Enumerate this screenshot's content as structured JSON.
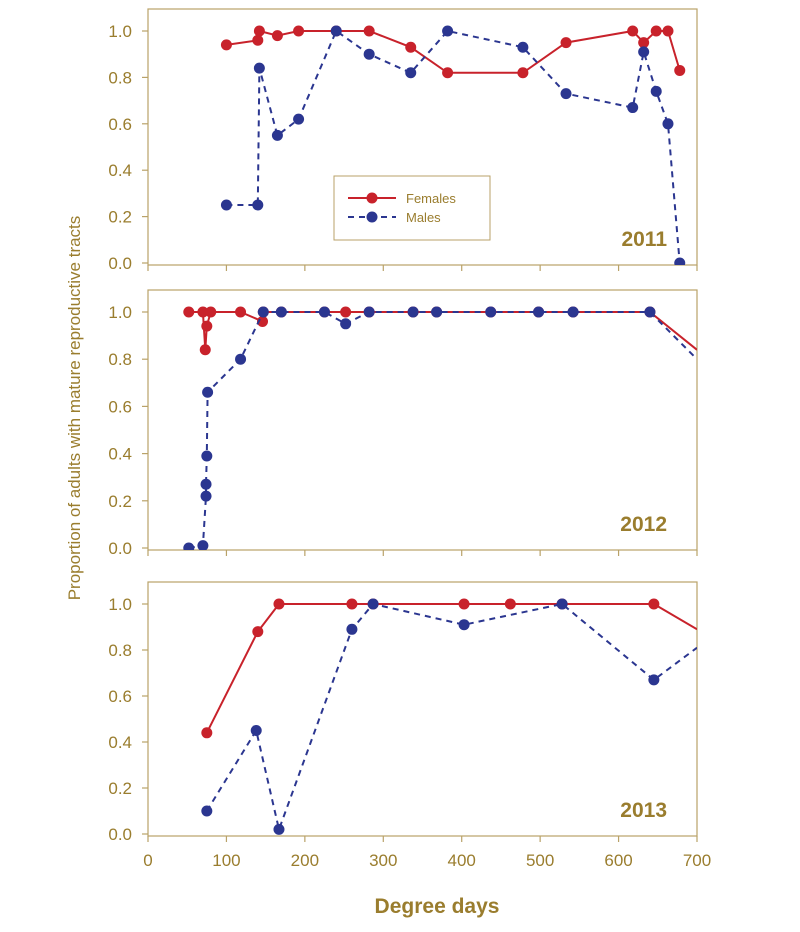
{
  "theme": {
    "frame_color": "#b9a268",
    "text_color": "#9a7d2e",
    "female_color": "#c8222b",
    "male_color": "#2b3690"
  },
  "shared": {
    "xlabel": "Degree days",
    "ylabel": "Proportion of adults with mature reproductive tracts",
    "x_ticks": [
      0,
      100,
      200,
      300,
      400,
      500,
      600,
      700
    ],
    "xlim": [
      0,
      700
    ]
  },
  "legend": [
    {
      "name": "Females",
      "style": "solid",
      "color": "#c8222b"
    },
    {
      "name": "Males",
      "style": "dashed",
      "color": "#2b3690"
    }
  ],
  "chart_data": [
    {
      "type": "line",
      "title": "2011",
      "ylim": [
        0,
        1.05
      ],
      "y_ticks": [
        "0.0",
        "0.2",
        "0.4",
        "0.6",
        "0.8",
        "1.0"
      ],
      "legend_position": "center",
      "series": [
        {
          "name": "Females",
          "style": "solid",
          "points": [
            [
              100,
              0.94
            ],
            [
              140,
              0.96
            ],
            [
              142,
              1.0
            ],
            [
              165,
              0.98
            ],
            [
              192,
              1.0
            ],
            [
              240,
              1.0
            ],
            [
              282,
              1.0
            ],
            [
              335,
              0.93
            ],
            [
              382,
              0.82
            ],
            [
              478,
              0.82
            ],
            [
              533,
              0.95
            ],
            [
              618,
              1.0
            ],
            [
              632,
              0.95
            ],
            [
              648,
              1.0
            ],
            [
              663,
              1.0
            ],
            [
              678,
              0.83
            ]
          ]
        },
        {
          "name": "Males",
          "style": "dashed",
          "points": [
            [
              100,
              0.25
            ],
            [
              140,
              0.25
            ],
            [
              142,
              0.84
            ],
            [
              165,
              0.55
            ],
            [
              192,
              0.62
            ],
            [
              240,
              1.0
            ],
            [
              282,
              0.9
            ],
            [
              335,
              0.82
            ],
            [
              382,
              1.0
            ],
            [
              478,
              0.93
            ],
            [
              533,
              0.73
            ],
            [
              618,
              0.67
            ],
            [
              632,
              0.91
            ],
            [
              648,
              0.74
            ],
            [
              663,
              0.6
            ],
            [
              678,
              0.0
            ]
          ]
        }
      ]
    },
    {
      "type": "line",
      "title": "2012",
      "ylim": [
        0,
        1.05
      ],
      "y_ticks": [
        "0.0",
        "0.2",
        "0.4",
        "0.6",
        "0.8",
        "1.0"
      ],
      "series": [
        {
          "name": "Females",
          "style": "solid",
          "points": [
            [
              52,
              1.0
            ],
            [
              70,
              1.0
            ],
            [
              73,
              0.84
            ],
            [
              75,
              0.94
            ],
            [
              80,
              1.0
            ],
            [
              118,
              1.0
            ],
            [
              146,
              0.96
            ],
            [
              147,
              1.0
            ],
            [
              170,
              1.0
            ],
            [
              225,
              1.0
            ],
            [
              252,
              1.0
            ],
            [
              282,
              1.0
            ],
            [
              338,
              1.0
            ],
            [
              368,
              1.0
            ],
            [
              437,
              1.0
            ],
            [
              498,
              1.0
            ],
            [
              542,
              1.0
            ],
            [
              640,
              1.0
            ],
            [
              700,
              0.84
            ]
          ]
        },
        {
          "name": "Males",
          "style": "dashed",
          "points": [
            [
              52,
              0.0
            ],
            [
              70,
              0.01
            ],
            [
              74,
              0.22
            ],
            [
              74,
              0.27
            ],
            [
              75,
              0.39
            ],
            [
              76,
              0.66
            ],
            [
              118,
              0.8
            ],
            [
              147,
              1.0
            ],
            [
              170,
              1.0
            ],
            [
              225,
              1.0
            ],
            [
              252,
              0.95
            ],
            [
              282,
              1.0
            ],
            [
              338,
              1.0
            ],
            [
              368,
              1.0
            ],
            [
              437,
              1.0
            ],
            [
              498,
              1.0
            ],
            [
              542,
              1.0
            ],
            [
              640,
              1.0
            ],
            [
              700,
              0.8
            ]
          ]
        }
      ]
    },
    {
      "type": "line",
      "title": "2013",
      "ylim": [
        0,
        1.05
      ],
      "y_ticks": [
        "0.0",
        "0.2",
        "0.4",
        "0.6",
        "0.8",
        "1.0"
      ],
      "series": [
        {
          "name": "Females",
          "style": "solid",
          "points": [
            [
              75,
              0.44
            ],
            [
              140,
              0.88
            ],
            [
              167,
              1.0
            ],
            [
              260,
              1.0
            ],
            [
              287,
              1.0
            ],
            [
              403,
              1.0
            ],
            [
              462,
              1.0
            ],
            [
              528,
              1.0
            ],
            [
              645,
              1.0
            ],
            [
              700,
              0.89
            ]
          ]
        },
        {
          "name": "Males",
          "style": "dashed",
          "points": [
            [
              75,
              0.1
            ],
            [
              138,
              0.45
            ],
            [
              167,
              0.02
            ],
            [
              260,
              0.89
            ],
            [
              287,
              1.0
            ],
            [
              403,
              0.91
            ],
            [
              528,
              1.0
            ],
            [
              645,
              0.67
            ],
            [
              700,
              0.81
            ]
          ]
        }
      ]
    }
  ]
}
